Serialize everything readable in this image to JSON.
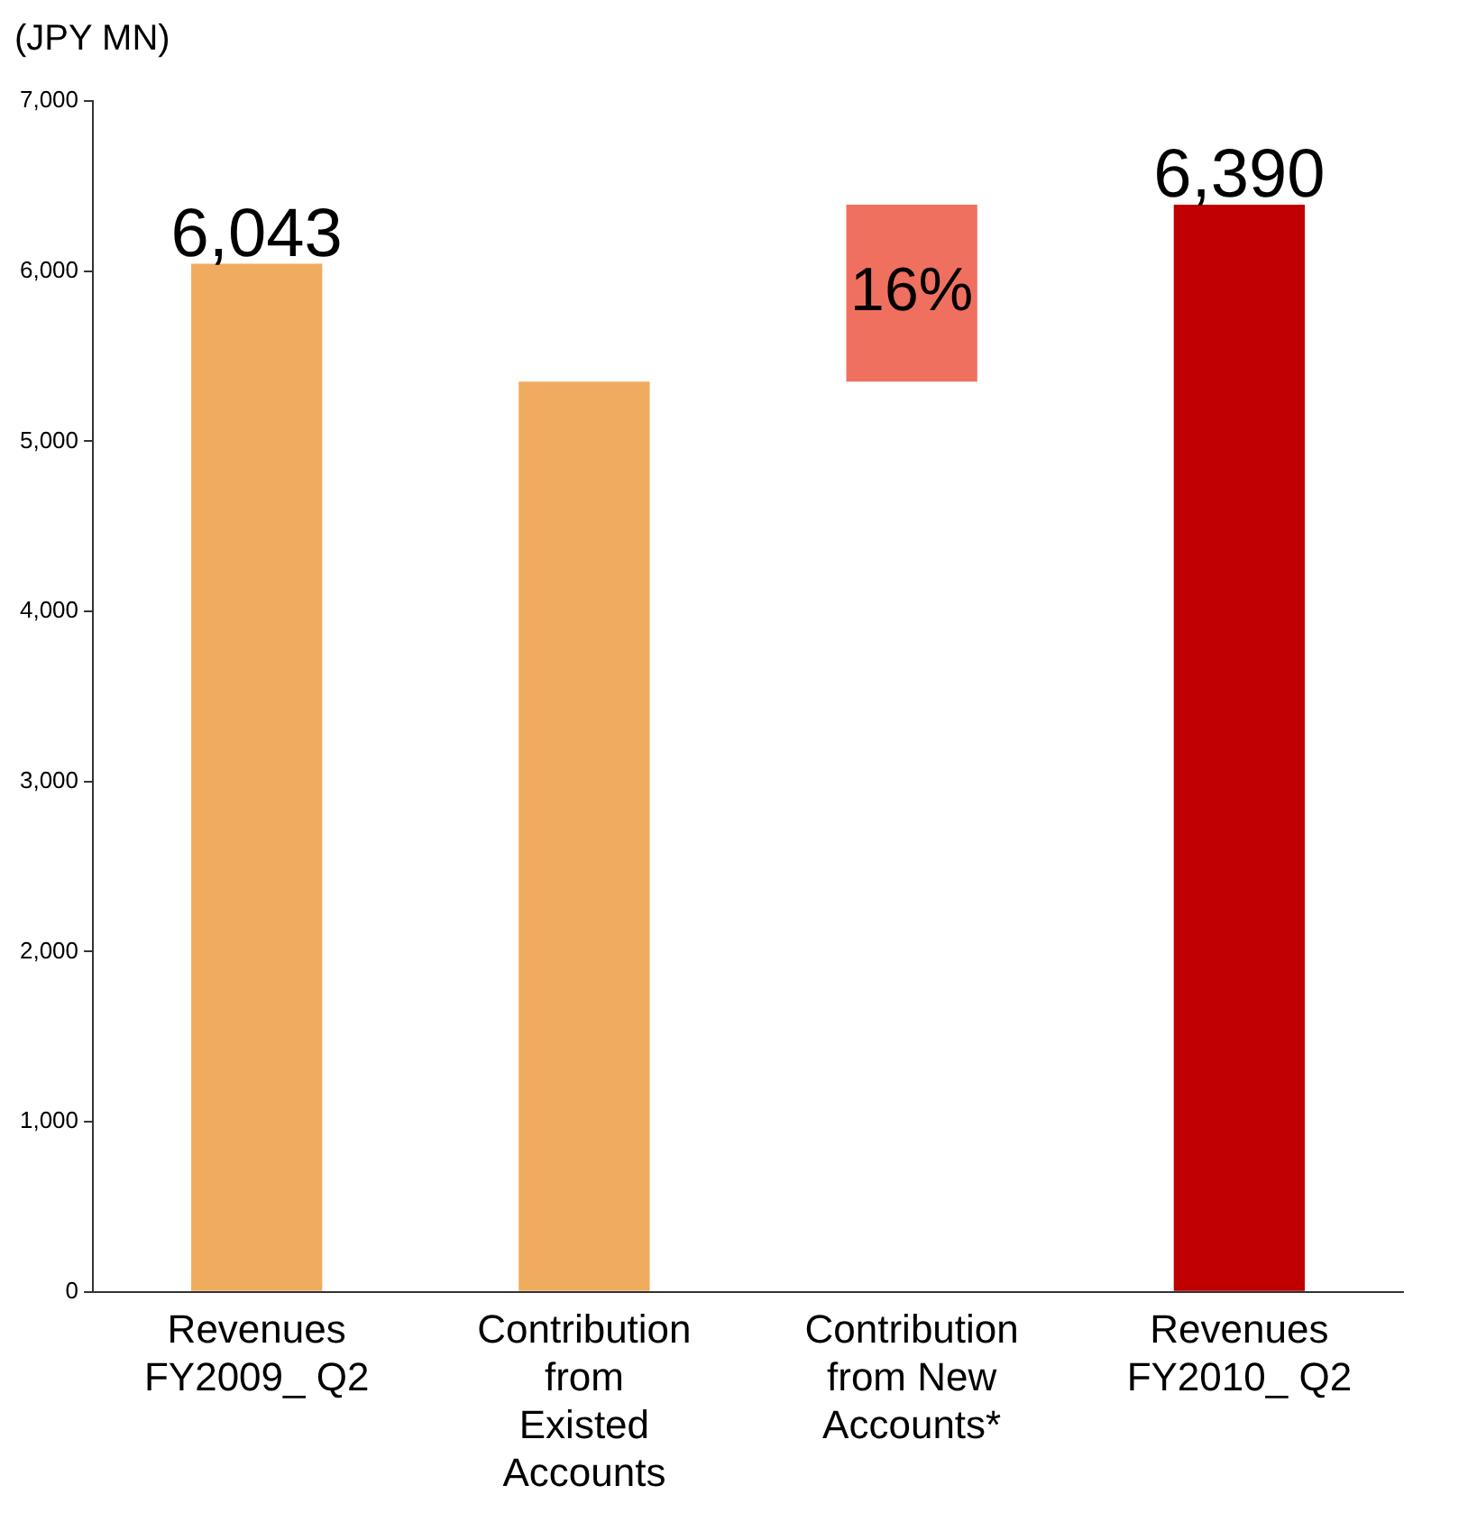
{
  "chart_data": {
    "type": "bar",
    "ylabel": "(JPY MN)",
    "categories": [
      "Revenues FY2009_ Q2",
      "Contribution from Existed Accounts",
      "Contribution from New Accounts*",
      "Revenues FY2010_ Q2"
    ],
    "values": [
      6043,
      5350,
      1040,
      6390
    ],
    "base": [
      0,
      0,
      5350,
      0
    ],
    "colors": [
      "#f0ac5e",
      "#f0ac5e",
      "#f07060",
      "#c00000"
    ],
    "value_labels": [
      "6,043",
      null,
      null,
      "6,390"
    ],
    "annotations": [
      "16%"
    ],
    "ylim": [
      0,
      7000
    ],
    "yticks": [
      {
        "value": 0,
        "label": "0"
      },
      {
        "value": 1000,
        "label": "1,000"
      },
      {
        "value": 2000,
        "label": "2,000"
      },
      {
        "value": 3000,
        "label": "3,000"
      },
      {
        "value": 4000,
        "label": "4,000"
      },
      {
        "value": 5000,
        "label": "5,000"
      },
      {
        "value": 6000,
        "label": "6,000"
      },
      {
        "value": 7000,
        "label": "7,000"
      }
    ],
    "grid": false,
    "legend": false
  }
}
